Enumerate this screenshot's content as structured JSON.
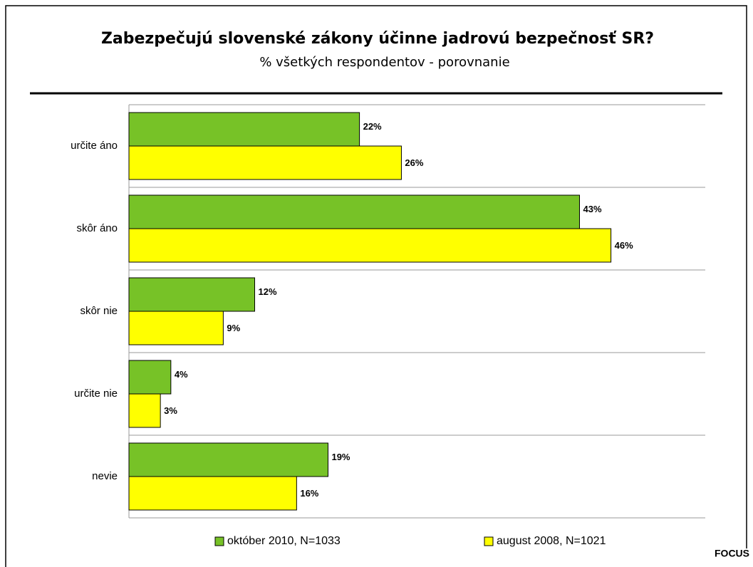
{
  "chart_data": {
    "type": "bar",
    "orientation": "horizontal",
    "title": "Zabezpečujú slovenské zákony účinne jadrovú bezpečnosť SR?",
    "subtitle": "% všetkých respondentov - porovnanie",
    "categories": [
      "určite áno",
      "skôr áno",
      "skôr nie",
      "určite nie",
      "nevie"
    ],
    "series": [
      {
        "name": "október 2010, N=1033",
        "color": "#77c227",
        "values": [
          22,
          43,
          12,
          4,
          19
        ],
        "value_labels": [
          "22%",
          "43%",
          "12%",
          "4%",
          "19%"
        ]
      },
      {
        "name": "august 2008, N=1021",
        "color": "#ffff00",
        "values": [
          26,
          46,
          9,
          3,
          16
        ],
        "value_labels": [
          "26%",
          "46%",
          "9%",
          "3%",
          "16%"
        ]
      }
    ],
    "xlim": [
      0,
      55
    ],
    "legend": "bottom",
    "source": "FOCUS"
  }
}
